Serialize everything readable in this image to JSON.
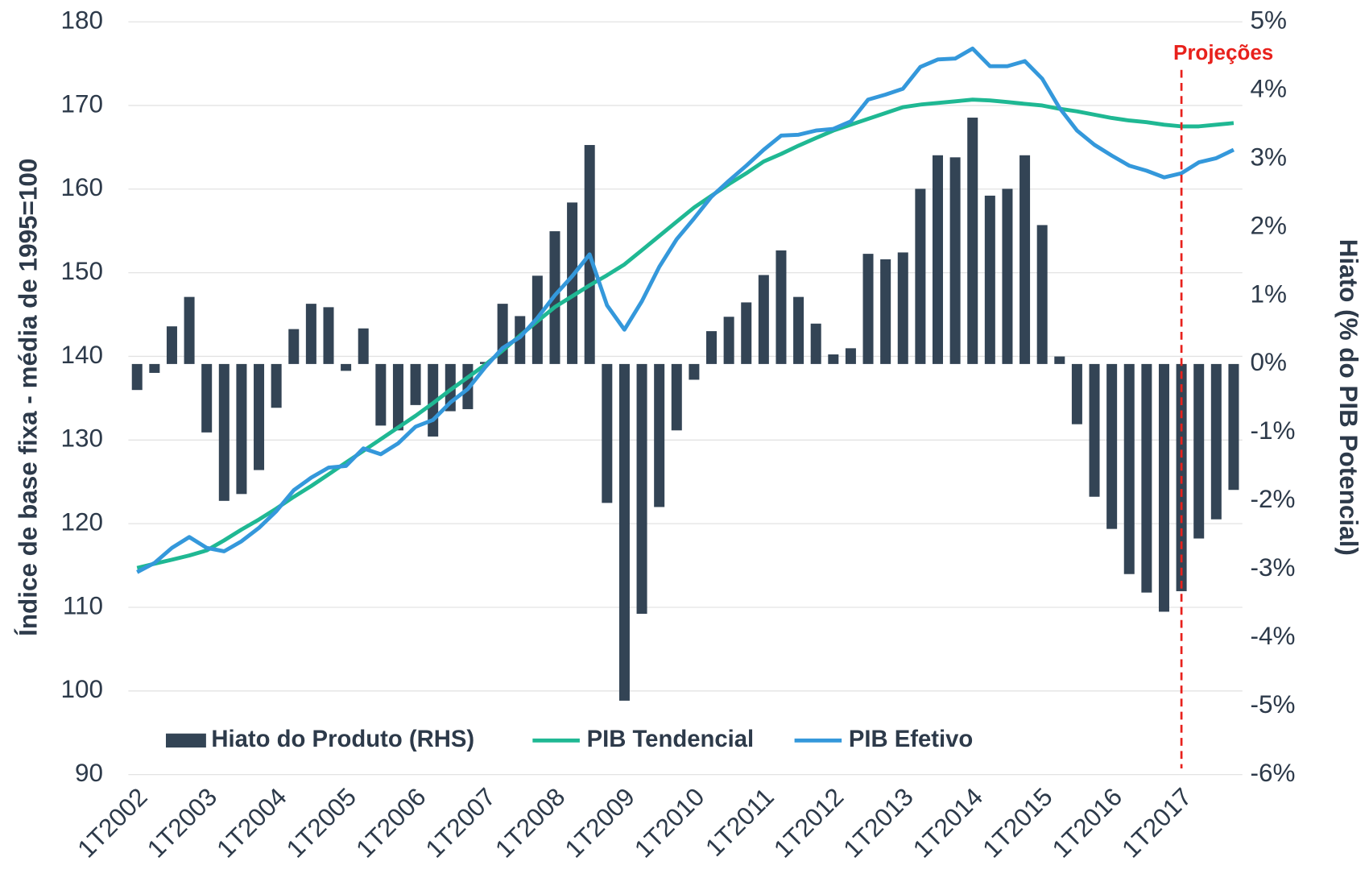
{
  "chart_data": {
    "type": "combo",
    "y_label": "Índice de base fixa - média de 1995=100",
    "y2_label": "Hiato (% do PIB Potencial)",
    "categories": [
      "1T2002",
      null,
      null,
      null,
      "1T2003",
      null,
      null,
      null,
      "1T2004",
      null,
      null,
      null,
      "1T2005",
      null,
      null,
      null,
      "1T2006",
      null,
      null,
      null,
      "1T2007",
      null,
      null,
      null,
      "1T2008",
      null,
      null,
      null,
      "1T2009",
      null,
      null,
      null,
      "1T2010",
      null,
      null,
      null,
      "1T2011",
      null,
      null,
      null,
      "1T2012",
      null,
      null,
      null,
      "1T2013",
      null,
      null,
      null,
      "1T2014",
      null,
      null,
      null,
      "1T2015",
      null,
      null,
      null,
      "1T2016",
      null,
      null,
      null,
      "1T2017",
      null,
      null,
      null
    ],
    "series": [
      {
        "name": "Hiato do Produto (RHS)",
        "type": "bar",
        "axis": "y2",
        "color": "#334455",
        "values": [
          -0.38,
          -0.13,
          0.55,
          0.98,
          -1.0,
          -2.0,
          -1.9,
          -1.55,
          -0.64,
          0.51,
          0.88,
          0.83,
          -0.1,
          0.52,
          -0.9,
          -0.97,
          -0.6,
          -1.06,
          -0.69,
          -0.66,
          0.03,
          0.88,
          0.7,
          1.29,
          1.94,
          2.36,
          3.2,
          -2.03,
          -4.92,
          -3.65,
          -2.09,
          -0.97,
          -0.23,
          0.48,
          0.69,
          0.9,
          1.3,
          1.66,
          0.98,
          0.59,
          0.14,
          0.23,
          1.61,
          1.53,
          1.63,
          2.56,
          3.05,
          3.02,
          3.6,
          2.46,
          2.56,
          3.05,
          2.03,
          0.11,
          -0.88,
          -1.94,
          -2.41,
          -3.07,
          -3.34,
          -3.62,
          -3.32,
          -2.55,
          -2.27,
          -1.84
        ]
      },
      {
        "name": "PIB Tendencial",
        "type": "line",
        "color": "#1fb893",
        "values": [
          114.7,
          115.2,
          115.7,
          116.2,
          116.8,
          118.0,
          119.3,
          120.5,
          121.8,
          123.2,
          124.5,
          125.9,
          127.3,
          128.7,
          130.1,
          131.5,
          132.9,
          134.4,
          136.0,
          137.5,
          139.0,
          140.7,
          142.5,
          144.2,
          145.9,
          147.2,
          148.5,
          149.7,
          151.0,
          152.7,
          154.4,
          156.1,
          157.8,
          159.2,
          160.6,
          161.9,
          163.3,
          164.2,
          165.2,
          166.1,
          167.0,
          167.7,
          168.4,
          169.1,
          169.8,
          170.1,
          170.3,
          170.5,
          170.7,
          170.6,
          170.4,
          170.2,
          170.0,
          169.6,
          169.3,
          168.9,
          168.5,
          168.2,
          168.0,
          167.7,
          167.5,
          167.5,
          167.7,
          167.9
        ]
      },
      {
        "name": "PIB Efetivo",
        "type": "line",
        "color": "#3498db",
        "values": [
          114.2,
          115.3,
          117.1,
          118.4,
          117.1,
          116.7,
          117.9,
          119.5,
          121.5,
          124.0,
          125.5,
          126.7,
          126.9,
          129.0,
          128.3,
          129.6,
          131.6,
          132.4,
          134.5,
          136.1,
          138.7,
          141.0,
          142.3,
          144.6,
          147.3,
          149.6,
          152.2,
          146.1,
          143.2,
          146.6,
          150.7,
          154.0,
          156.5,
          159.1,
          161.0,
          162.8,
          164.7,
          166.4,
          166.5,
          167.0,
          167.2,
          168.1,
          170.7,
          171.3,
          172.0,
          174.6,
          175.5,
          175.6,
          176.8,
          174.7,
          174.7,
          175.3,
          173.2,
          169.7,
          167.0,
          165.3,
          164.0,
          162.8,
          162.2,
          161.4,
          161.9,
          163.2,
          163.7,
          164.7
        ]
      }
    ],
    "ylim": [
      90,
      180
    ],
    "yticks": [
      90,
      100,
      110,
      120,
      130,
      140,
      150,
      160,
      170,
      180
    ],
    "y2lim": [
      -6,
      5
    ],
    "y2ticks": [
      {
        "value": -6,
        "label": "-6%"
      },
      {
        "value": -5,
        "label": "-5%"
      },
      {
        "value": -4,
        "label": "-4%"
      },
      {
        "value": -3,
        "label": "-3%"
      },
      {
        "value": -2,
        "label": "-2%"
      },
      {
        "value": -1,
        "label": "-1%"
      },
      {
        "value": 0,
        "label": "0%"
      },
      {
        "value": 1,
        "label": "1%"
      },
      {
        "value": 2,
        "label": "2%"
      },
      {
        "value": 3,
        "label": "3%"
      },
      {
        "value": 4,
        "label": "4%"
      },
      {
        "value": 5,
        "label": "5%"
      }
    ],
    "grid": true,
    "legend": "bottom",
    "annotations": [
      {
        "text": "Projeções",
        "x": "1T2017",
        "color": "#e8211c"
      }
    ]
  }
}
